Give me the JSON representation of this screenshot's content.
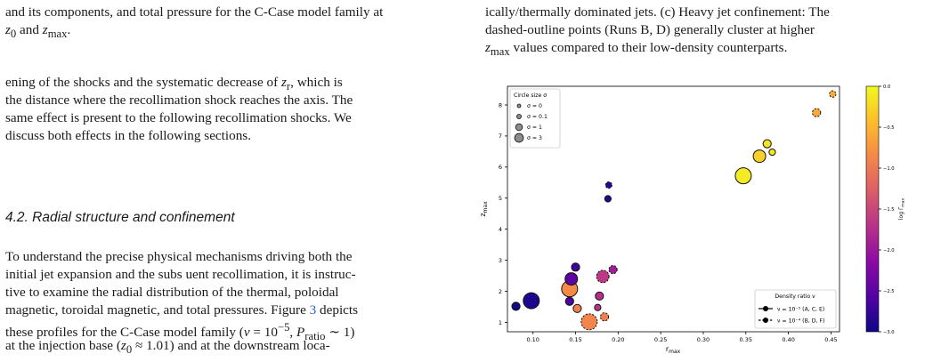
{
  "left_column": {
    "caption_tail": "and its components, and total pressure for the C-Case model family at",
    "caption_tail_2_pre": "z",
    "caption_tail_2_sub0": "0",
    "caption_tail_2_mid": " and ",
    "caption_tail_2_z": "z",
    "caption_tail_2_submax": "max",
    "caption_tail_2_end": ".",
    "para1": [
      "ening of the shocks and the systematic decrease of ",
      "z",
      "r",
      ", which is",
      "the distance where the recollimation shock reaches the axis. The",
      "same effect is present to the following recollimation shocks. We",
      "discuss both effects in the following sections."
    ],
    "section_title": "4.2. Radial structure and confinement",
    "para2": {
      "l1": "To understand the precise physical mechanisms driving both the",
      "l2": "initial jet expansion and the subs uent recollimation, it is instruc-",
      "l3": "tive to examine the radial distribution of the thermal, poloidal",
      "l4": "magnetic, toroidal magnetic, and total pressures. Figure ",
      "l4_ref": "3",
      "l4_end": " depicts",
      "l5a": "these profiles for the C-Case model family (",
      "l5_nu": "ν",
      "l5b": " = 10",
      "l5_exp": "−5",
      "l5c": ", ",
      "l5_P": "P",
      "l5_Psub": "ratio",
      "l5d": " ∼ 1)",
      "l6a": "at the injection base (",
      "l6_z": "z",
      "l6_sub": "0",
      "l6b": " ≈ 1.01) and at the downstream loca-"
    }
  },
  "right_column": {
    "line1": "ically/thermally dominated jets. (c) Heavy jet confinement: The",
    "line2": "dashed-outline points (Runs B, D) generally cluster at higher",
    "line3_z": "z",
    "line3_sub": "max",
    "line3_rest": " values compared to their low-density counterparts."
  },
  "chart_data": {
    "type": "scatter",
    "xlabel": "r",
    "xlabel_sub": "max",
    "ylabel": "z",
    "ylabel_sub": "max",
    "xlim": [
      0.07,
      0.46
    ],
    "ylim": [
      0.7,
      8.6
    ],
    "xticks": [
      0.1,
      0.15,
      0.2,
      0.25,
      0.3,
      0.35,
      0.4,
      0.45
    ],
    "xtick_labels": [
      "0.10",
      "0.15",
      "0.20",
      "0.25",
      "0.30",
      "0.35",
      "0.40",
      "0.45"
    ],
    "yticks": [
      1,
      2,
      3,
      4,
      5,
      6,
      7,
      8
    ],
    "ytick_labels": [
      "1",
      "2",
      "3",
      "4",
      "5",
      "6",
      "7",
      "8"
    ],
    "colorbar": {
      "label": "log Γ",
      "label_sub": "max",
      "range": [
        -3.0,
        0.0
      ],
      "ticks": [
        0.0,
        -0.5,
        -1.0,
        -1.5,
        -2.0,
        -2.5,
        -3.0
      ],
      "tick_labels": [
        "0.0",
        "−0.5",
        "−1.0",
        "−1.5",
        "−2.0",
        "−2.5",
        "−3.0"
      ]
    },
    "size_legend": {
      "title": "Circle size  σ",
      "entries": [
        {
          "label": "σ = 0",
          "sigma": 0
        },
        {
          "label": "σ = 0.1",
          "sigma": 0.1
        },
        {
          "label": "σ = 1",
          "sigma": 1
        },
        {
          "label": "σ = 3",
          "sigma": 3
        }
      ]
    },
    "density_legend": {
      "title": "Density ratio ν",
      "entries": [
        {
          "label": "ν = 10⁻⁵ (A, C, E)",
          "style": "solid"
        },
        {
          "label": "ν = 10⁻⁴ (B, D, F)",
          "style": "dashed"
        }
      ]
    },
    "points": [
      {
        "x": 0.08,
        "y": 1.52,
        "sigma": 0.1,
        "c": -2.95,
        "dashed": false
      },
      {
        "x": 0.098,
        "y": 1.7,
        "sigma": 3,
        "c": -2.9,
        "dashed": false
      },
      {
        "x": 0.143,
        "y": 1.68,
        "sigma": 0.1,
        "c": -2.6,
        "dashed": false
      },
      {
        "x": 0.145,
        "y": 2.4,
        "sigma": 1,
        "c": -2.5,
        "dashed": false
      },
      {
        "x": 0.15,
        "y": 2.78,
        "sigma": 0.1,
        "c": -2.7,
        "dashed": false
      },
      {
        "x": 0.143,
        "y": 2.08,
        "sigma": 3,
        "c": -0.85,
        "dashed": false
      },
      {
        "x": 0.152,
        "y": 1.45,
        "sigma": 0.1,
        "c": -0.95,
        "dashed": false
      },
      {
        "x": 0.166,
        "y": 1.02,
        "sigma": 3,
        "c": -0.9,
        "dashed": true
      },
      {
        "x": 0.176,
        "y": 1.48,
        "sigma": 0,
        "c": -1.7,
        "dashed": false
      },
      {
        "x": 0.178,
        "y": 1.85,
        "sigma": 0.1,
        "c": -1.75,
        "dashed": false
      },
      {
        "x": 0.182,
        "y": 2.48,
        "sigma": 1,
        "c": -1.65,
        "dashed": true
      },
      {
        "x": 0.184,
        "y": 1.18,
        "sigma": 0.1,
        "c": -0.95,
        "dashed": true
      },
      {
        "x": 0.194,
        "y": 2.7,
        "sigma": 0.1,
        "c": -1.95,
        "dashed": true
      },
      {
        "x": 0.188,
        "y": 4.98,
        "sigma": 0,
        "c": -2.85,
        "dashed": false
      },
      {
        "x": 0.189,
        "y": 5.42,
        "sigma": 0,
        "c": -2.85,
        "dashed": true
      },
      {
        "x": 0.347,
        "y": 5.72,
        "sigma": 3,
        "c": -0.1,
        "dashed": false
      },
      {
        "x": 0.366,
        "y": 6.35,
        "sigma": 1,
        "c": -0.3,
        "dashed": false
      },
      {
        "x": 0.375,
        "y": 6.75,
        "sigma": 0.1,
        "c": -0.15,
        "dashed": false
      },
      {
        "x": 0.381,
        "y": 6.48,
        "sigma": 0,
        "c": -0.15,
        "dashed": false
      },
      {
        "x": 0.433,
        "y": 7.75,
        "sigma": 0.1,
        "c": -0.6,
        "dashed": true
      },
      {
        "x": 0.452,
        "y": 8.35,
        "sigma": 0,
        "c": -0.55,
        "dashed": true
      }
    ]
  }
}
